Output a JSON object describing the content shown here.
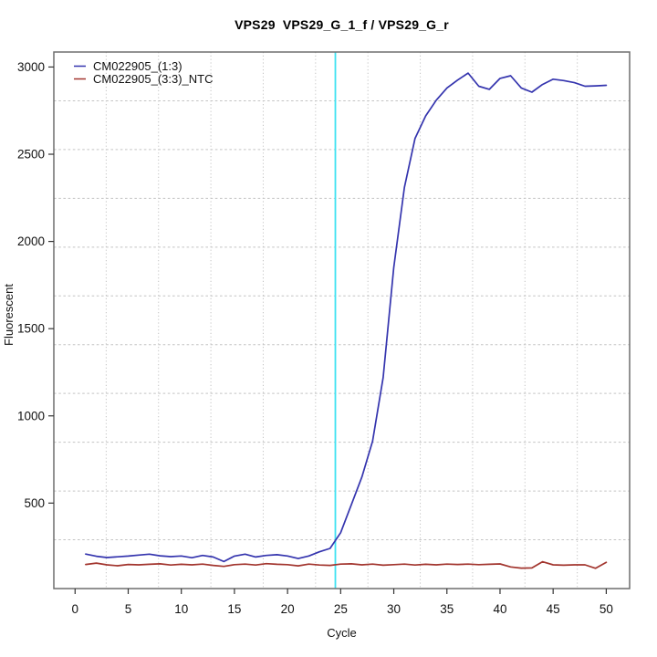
{
  "chart_data": {
    "type": "line",
    "title": "VPS29  VPS29_G_1_f / VPS29_G_r",
    "xlabel": "Cycle",
    "ylabel": "Fluorescent",
    "x_ticks": [
      0,
      5,
      10,
      15,
      20,
      25,
      30,
      35,
      40,
      45,
      50
    ],
    "y_ticks": [
      500,
      1000,
      1500,
      2000,
      2500,
      3000
    ],
    "xlim": [
      -2.0,
      52.2
    ],
    "ylim": [
      10,
      3086
    ],
    "grid": {
      "divisions": 11,
      "on": true,
      "color": "#c3c3c3"
    },
    "legend_position": "topleft",
    "threshold_line": {
      "x": 24.5,
      "color": "#3fe2f2"
    },
    "x": [
      1,
      2,
      3,
      4,
      5,
      6,
      7,
      8,
      9,
      10,
      11,
      12,
      13,
      14,
      15,
      16,
      17,
      18,
      19,
      20,
      21,
      22,
      23,
      24,
      25,
      26,
      27,
      28,
      29,
      30,
      31,
      32,
      33,
      34,
      35,
      36,
      37,
      38,
      39,
      40,
      41,
      42,
      43,
      44,
      45,
      46,
      47,
      48,
      49,
      50
    ],
    "series": [
      {
        "name": "CM022905_(1:3)",
        "color": "#3434ae",
        "values": [
          208,
          195,
          188,
          192,
          196,
          202,
          207,
          198,
          193,
          197,
          187,
          200,
          191,
          165,
          196,
          207,
          191,
          200,
          204,
          197,
          182,
          197,
          221,
          240,
          330,
          490,
          650,
          855,
          1220,
          1850,
          2310,
          2590,
          2720,
          2810,
          2880,
          2925,
          2965,
          2890,
          2872,
          2935,
          2950,
          2880,
          2856,
          2900,
          2930,
          2922,
          2910,
          2890,
          2892,
          2895
        ]
      },
      {
        "name": "CM022905_(3:3)_NTC",
        "color": "#a2352e",
        "values": [
          148,
          156,
          146,
          141,
          148,
          146,
          149,
          152,
          145,
          149,
          146,
          150,
          143,
          137,
          147,
          150,
          145,
          153,
          149,
          147,
          140,
          150,
          145,
          143,
          150,
          152,
          146,
          150,
          144,
          147,
          150,
          145,
          149,
          146,
          150,
          148,
          150,
          147,
          149,
          151,
          134,
          127,
          128,
          164,
          146,
          144,
          146,
          146,
          126,
          160
        ]
      }
    ],
    "axis_text_color": "#111111",
    "box_color": "#6e6e6e"
  }
}
